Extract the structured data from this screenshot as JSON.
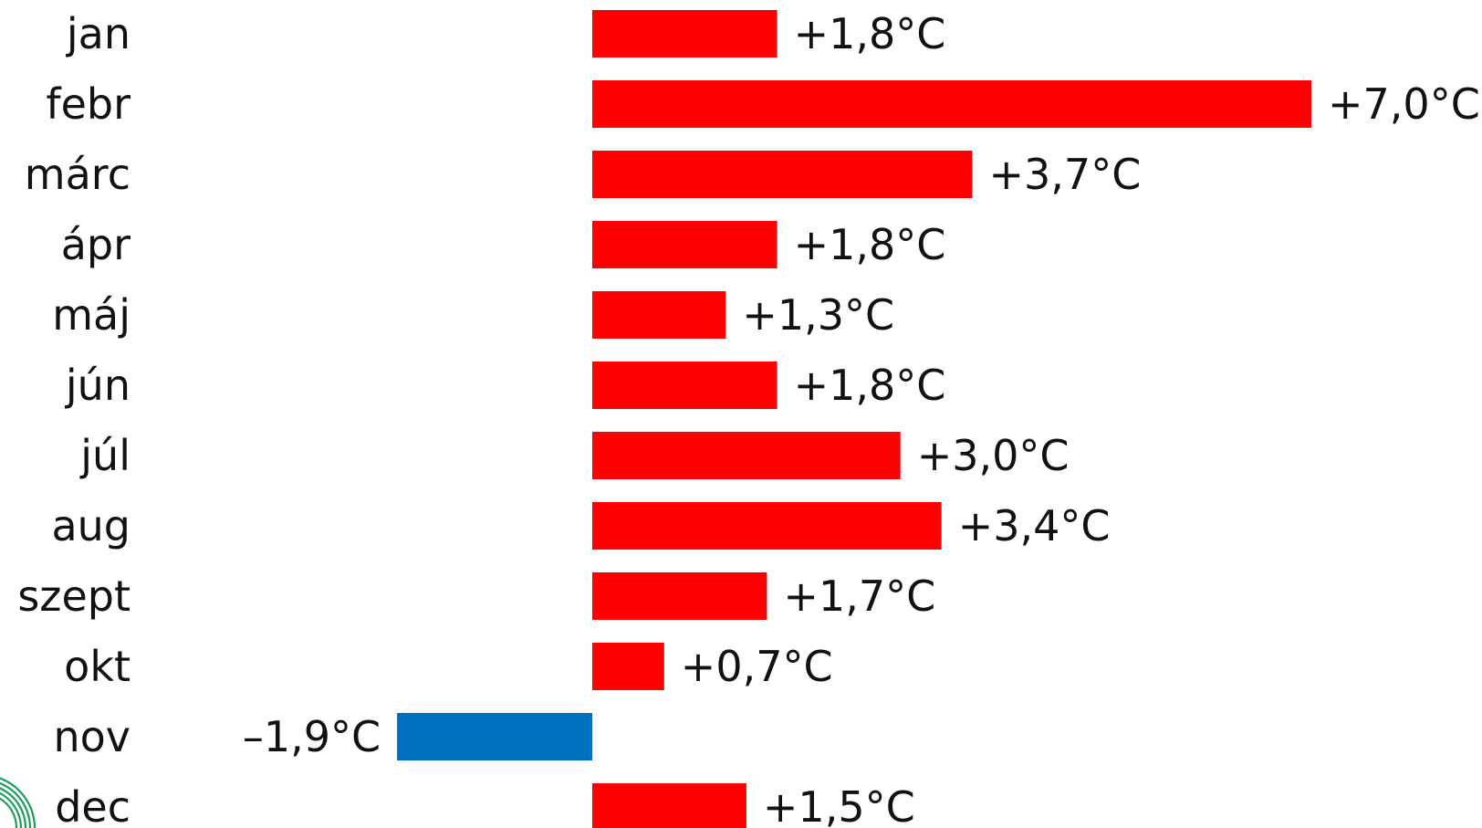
{
  "chart_data": {
    "type": "bar",
    "orientation": "horizontal",
    "categories": [
      "jan",
      "febr",
      "márc",
      "ápr",
      "máj",
      "jún",
      "júl",
      "aug",
      "szept",
      "okt",
      "nov",
      "dec"
    ],
    "values": [
      1.8,
      7.0,
      3.7,
      1.8,
      1.3,
      1.8,
      3.0,
      3.4,
      1.7,
      0.7,
      -1.9,
      1.5
    ],
    "value_labels": [
      "+1,8°C",
      "+7,0°C",
      "+3,7°C",
      "+1,8°C",
      "+1,3°C",
      "+1,8°C",
      "+3,0°C",
      "+3,4°C",
      "+1,7°C",
      "+0,7°C",
      "–1,9°C",
      "+1,5°C"
    ],
    "title": "",
    "xlabel": "",
    "ylabel": "",
    "xlim": [
      -1.9,
      7.0
    ],
    "grid": false,
    "legend": "none",
    "colors": {
      "positive": "#ff0000",
      "negative": "#0070c0",
      "corner_logo": "#1a9e5c"
    }
  }
}
